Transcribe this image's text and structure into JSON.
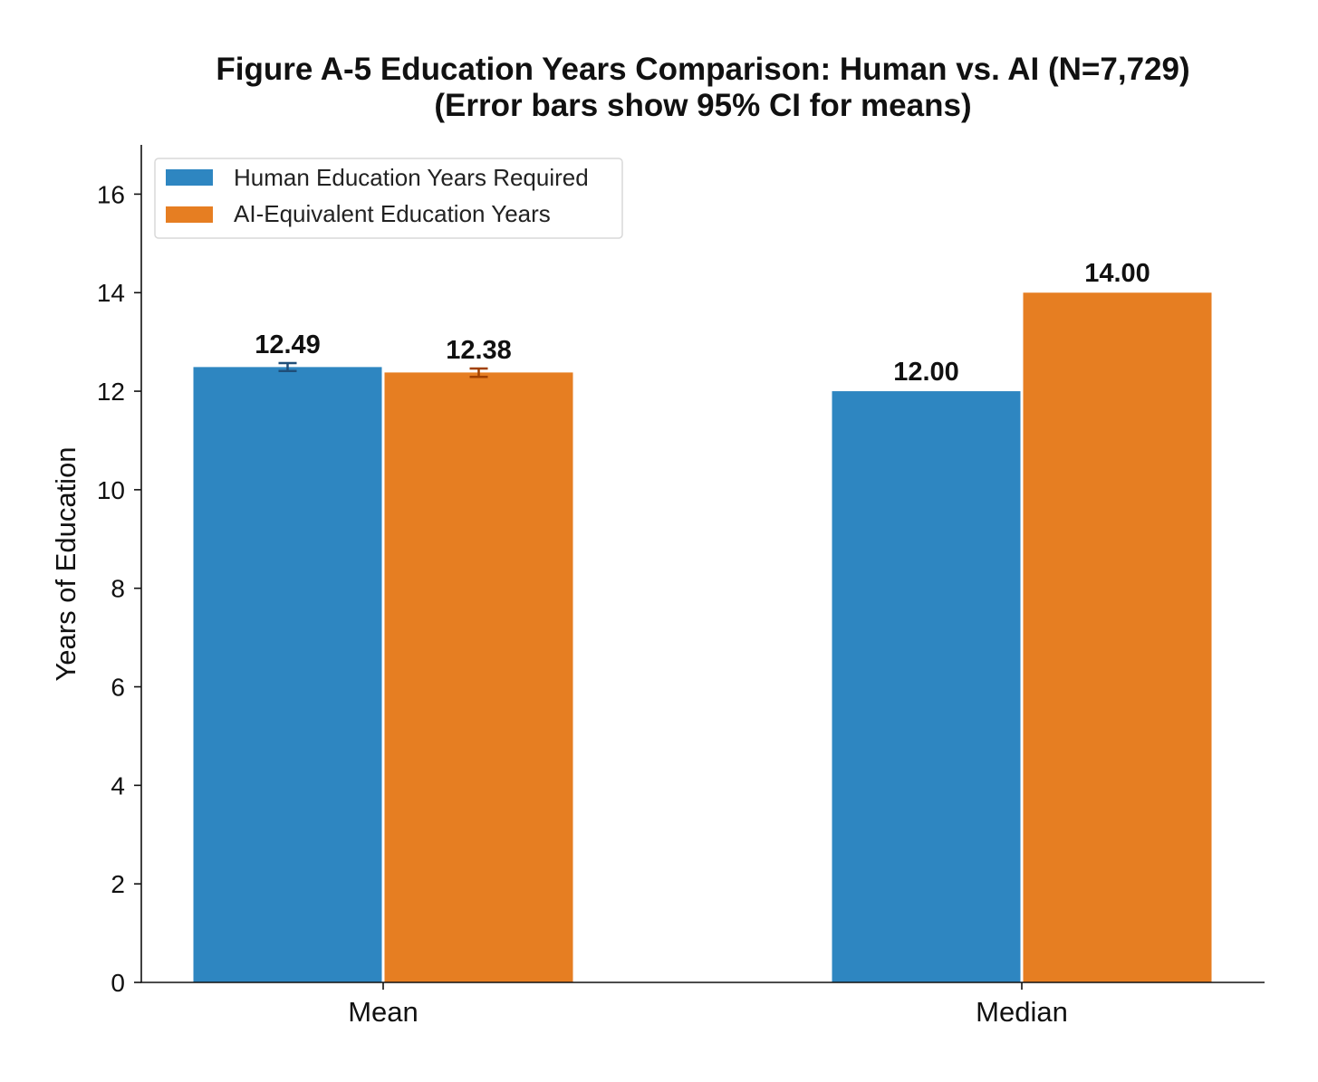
{
  "chart_data": {
    "type": "bar",
    "title": "Figure A-5  Education Years Comparison: Human vs. AI (N=7,729)",
    "subtitle": "(Error bars show 95% CI for means)",
    "xlabel": "",
    "ylabel": "Years of Education",
    "ylim": [
      0,
      17
    ],
    "yticks": [
      0,
      2,
      4,
      6,
      8,
      10,
      12,
      14,
      16
    ],
    "grid": false,
    "legend_position": "top-left",
    "categories": [
      "Mean",
      "Median"
    ],
    "series": [
      {
        "name": "Human Education Years Required",
        "color": "#2e86c1",
        "values": [
          12.49,
          12.0
        ],
        "labels": [
          "12.49",
          "12.00"
        ],
        "ci": [
          [
            12.41,
            12.57
          ],
          null
        ]
      },
      {
        "name": "AI-Equivalent Education Years",
        "color": "#e67e22",
        "values": [
          12.38,
          14.0
        ],
        "labels": [
          "12.38",
          "14.00"
        ],
        "ci": [
          [
            12.29,
            12.46
          ],
          null
        ]
      }
    ],
    "errorbar_colors": [
      "#1f4e79",
      "#a04000"
    ]
  }
}
